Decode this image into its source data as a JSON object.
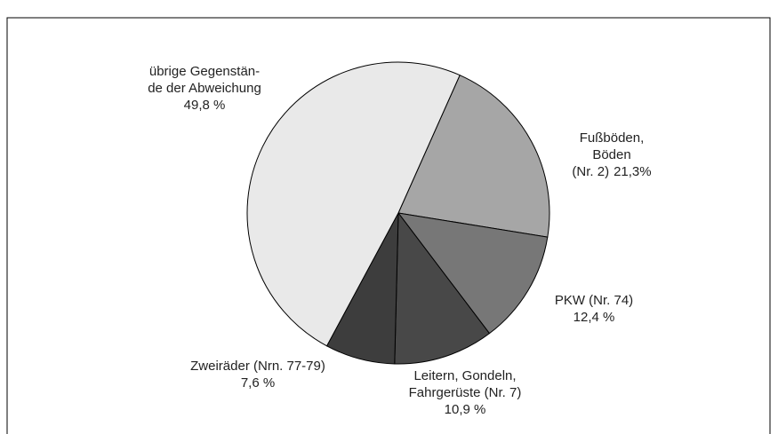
{
  "chart_data": {
    "type": "pie",
    "categories": [
      [
        "Fußböden,",
        "Böden",
        "(Nr. 2)"
      ],
      [
        "PKW (Nr. 74)"
      ],
      [
        "Leitern, Gondeln,",
        "Fahrgerüste (Nr. 7)"
      ],
      [
        "Zweiräder (Nrn. 77-79)"
      ],
      [
        "übrige Gegenstän-",
        "de der Abweichung"
      ]
    ],
    "values": [
      21.3,
      12.4,
      10.9,
      7.6,
      49.8
    ],
    "value_labels": [
      "21,3%",
      "12,4 %",
      "10,9 %",
      "7,6 %",
      "49,8 %"
    ],
    "colors": [
      "#a6a6a6",
      "#777777",
      "#484848",
      "#3d3d3d",
      "#e9e9e9"
    ]
  }
}
